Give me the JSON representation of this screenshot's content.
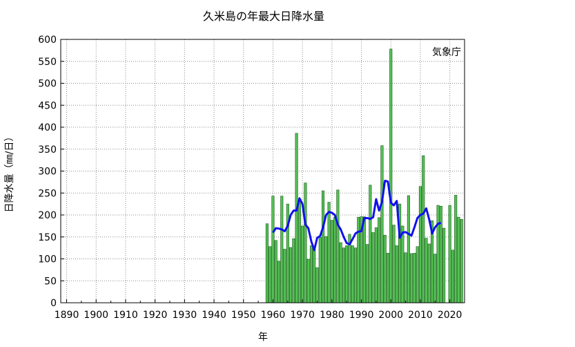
{
  "chart_data": {
    "type": "bar",
    "title": "久米島の年最大日降水量",
    "source_label": "気象庁",
    "xlabel": "年",
    "ylabel": "日降水量（㎜/日）",
    "xlim": [
      1888,
      2025
    ],
    "ylim": [
      0,
      600
    ],
    "xticks": [
      "1890",
      "1900",
      "1910",
      "1920",
      "1930",
      "1940",
      "1950",
      "1960",
      "1970",
      "1980",
      "1990",
      "2000",
      "2010",
      "2020"
    ],
    "yticks": [
      "0",
      "50",
      "100",
      "150",
      "200",
      "250",
      "300",
      "350",
      "400",
      "450",
      "500",
      "550",
      "600"
    ],
    "grid": true,
    "bar_color": "#55c055",
    "bar_edge": "#1a5a1a",
    "line_color": "#1010ee",
    "series": [
      {
        "type": "bar",
        "x": [
          1958,
          1959,
          1960,
          1961,
          1962,
          1963,
          1964,
          1965,
          1966,
          1967,
          1968,
          1969,
          1970,
          1971,
          1972,
          1973,
          1974,
          1975,
          1976,
          1977,
          1978,
          1979,
          1980,
          1981,
          1982,
          1983,
          1984,
          1985,
          1986,
          1987,
          1988,
          1989,
          1990,
          1991,
          1992,
          1993,
          1994,
          1995,
          1996,
          1997,
          1998,
          1999,
          2000,
          2001,
          2002,
          2003,
          2004,
          2005,
          2006,
          2007,
          2008,
          2009,
          2010,
          2011,
          2012,
          2013,
          2014,
          2015,
          2016,
          2017,
          2018,
          2019,
          2020,
          2021,
          2022,
          2023,
          2024
        ],
        "values": [
          180,
          128,
          243,
          142,
          95,
          243,
          122,
          225,
          126,
          146,
          386,
          233,
          175,
          273,
          99,
          130,
          122,
          80,
          149,
          255,
          151,
          229,
          188,
          195,
          257,
          137,
          125,
          130,
          156,
          130,
          125,
          195,
          196,
          196,
          133,
          268,
          160,
          171,
          194,
          358,
          154,
          113,
          578,
          177,
          130,
          225,
          175,
          114,
          244,
          112,
          113,
          128,
          265,
          335,
          147,
          134,
          187,
          111,
          222,
          220,
          170,
          null,
          222,
          120,
          245,
          195,
          190
        ]
      },
      {
        "type": "line",
        "name": "",
        "x": [
          1960,
          1961,
          1962,
          1963,
          1964,
          1965,
          1966,
          1967,
          1968,
          1969,
          1970,
          1971,
          1972,
          1973,
          1974,
          1975,
          1976,
          1977,
          1978,
          1979,
          1980,
          1981,
          1982,
          1983,
          1984,
          1985,
          1986,
          1987,
          1988,
          1989,
          1990,
          1991,
          1992,
          1993,
          1994,
          1995,
          1996,
          1997,
          1998,
          1999,
          2000,
          2001,
          2002,
          2003,
          2004,
          2005,
          2006,
          2007,
          2008,
          2009,
          2010,
          2011,
          2012,
          2013,
          2014,
          2015,
          2016,
          2017
        ],
        "values": [
          160,
          170,
          169,
          167,
          163,
          175,
          200,
          210,
          210,
          238,
          225,
          178,
          170,
          140,
          120,
          148,
          152,
          172,
          200,
          207,
          205,
          200,
          178,
          167,
          150,
          136,
          133,
          145,
          158,
          162,
          163,
          193,
          193,
          191,
          195,
          236,
          210,
          230,
          278,
          276,
          228,
          222,
          232,
          148,
          160,
          161,
          157,
          153,
          172,
          193,
          200,
          203,
          215,
          190,
          158,
          172,
          180,
          182
        ]
      }
    ]
  }
}
